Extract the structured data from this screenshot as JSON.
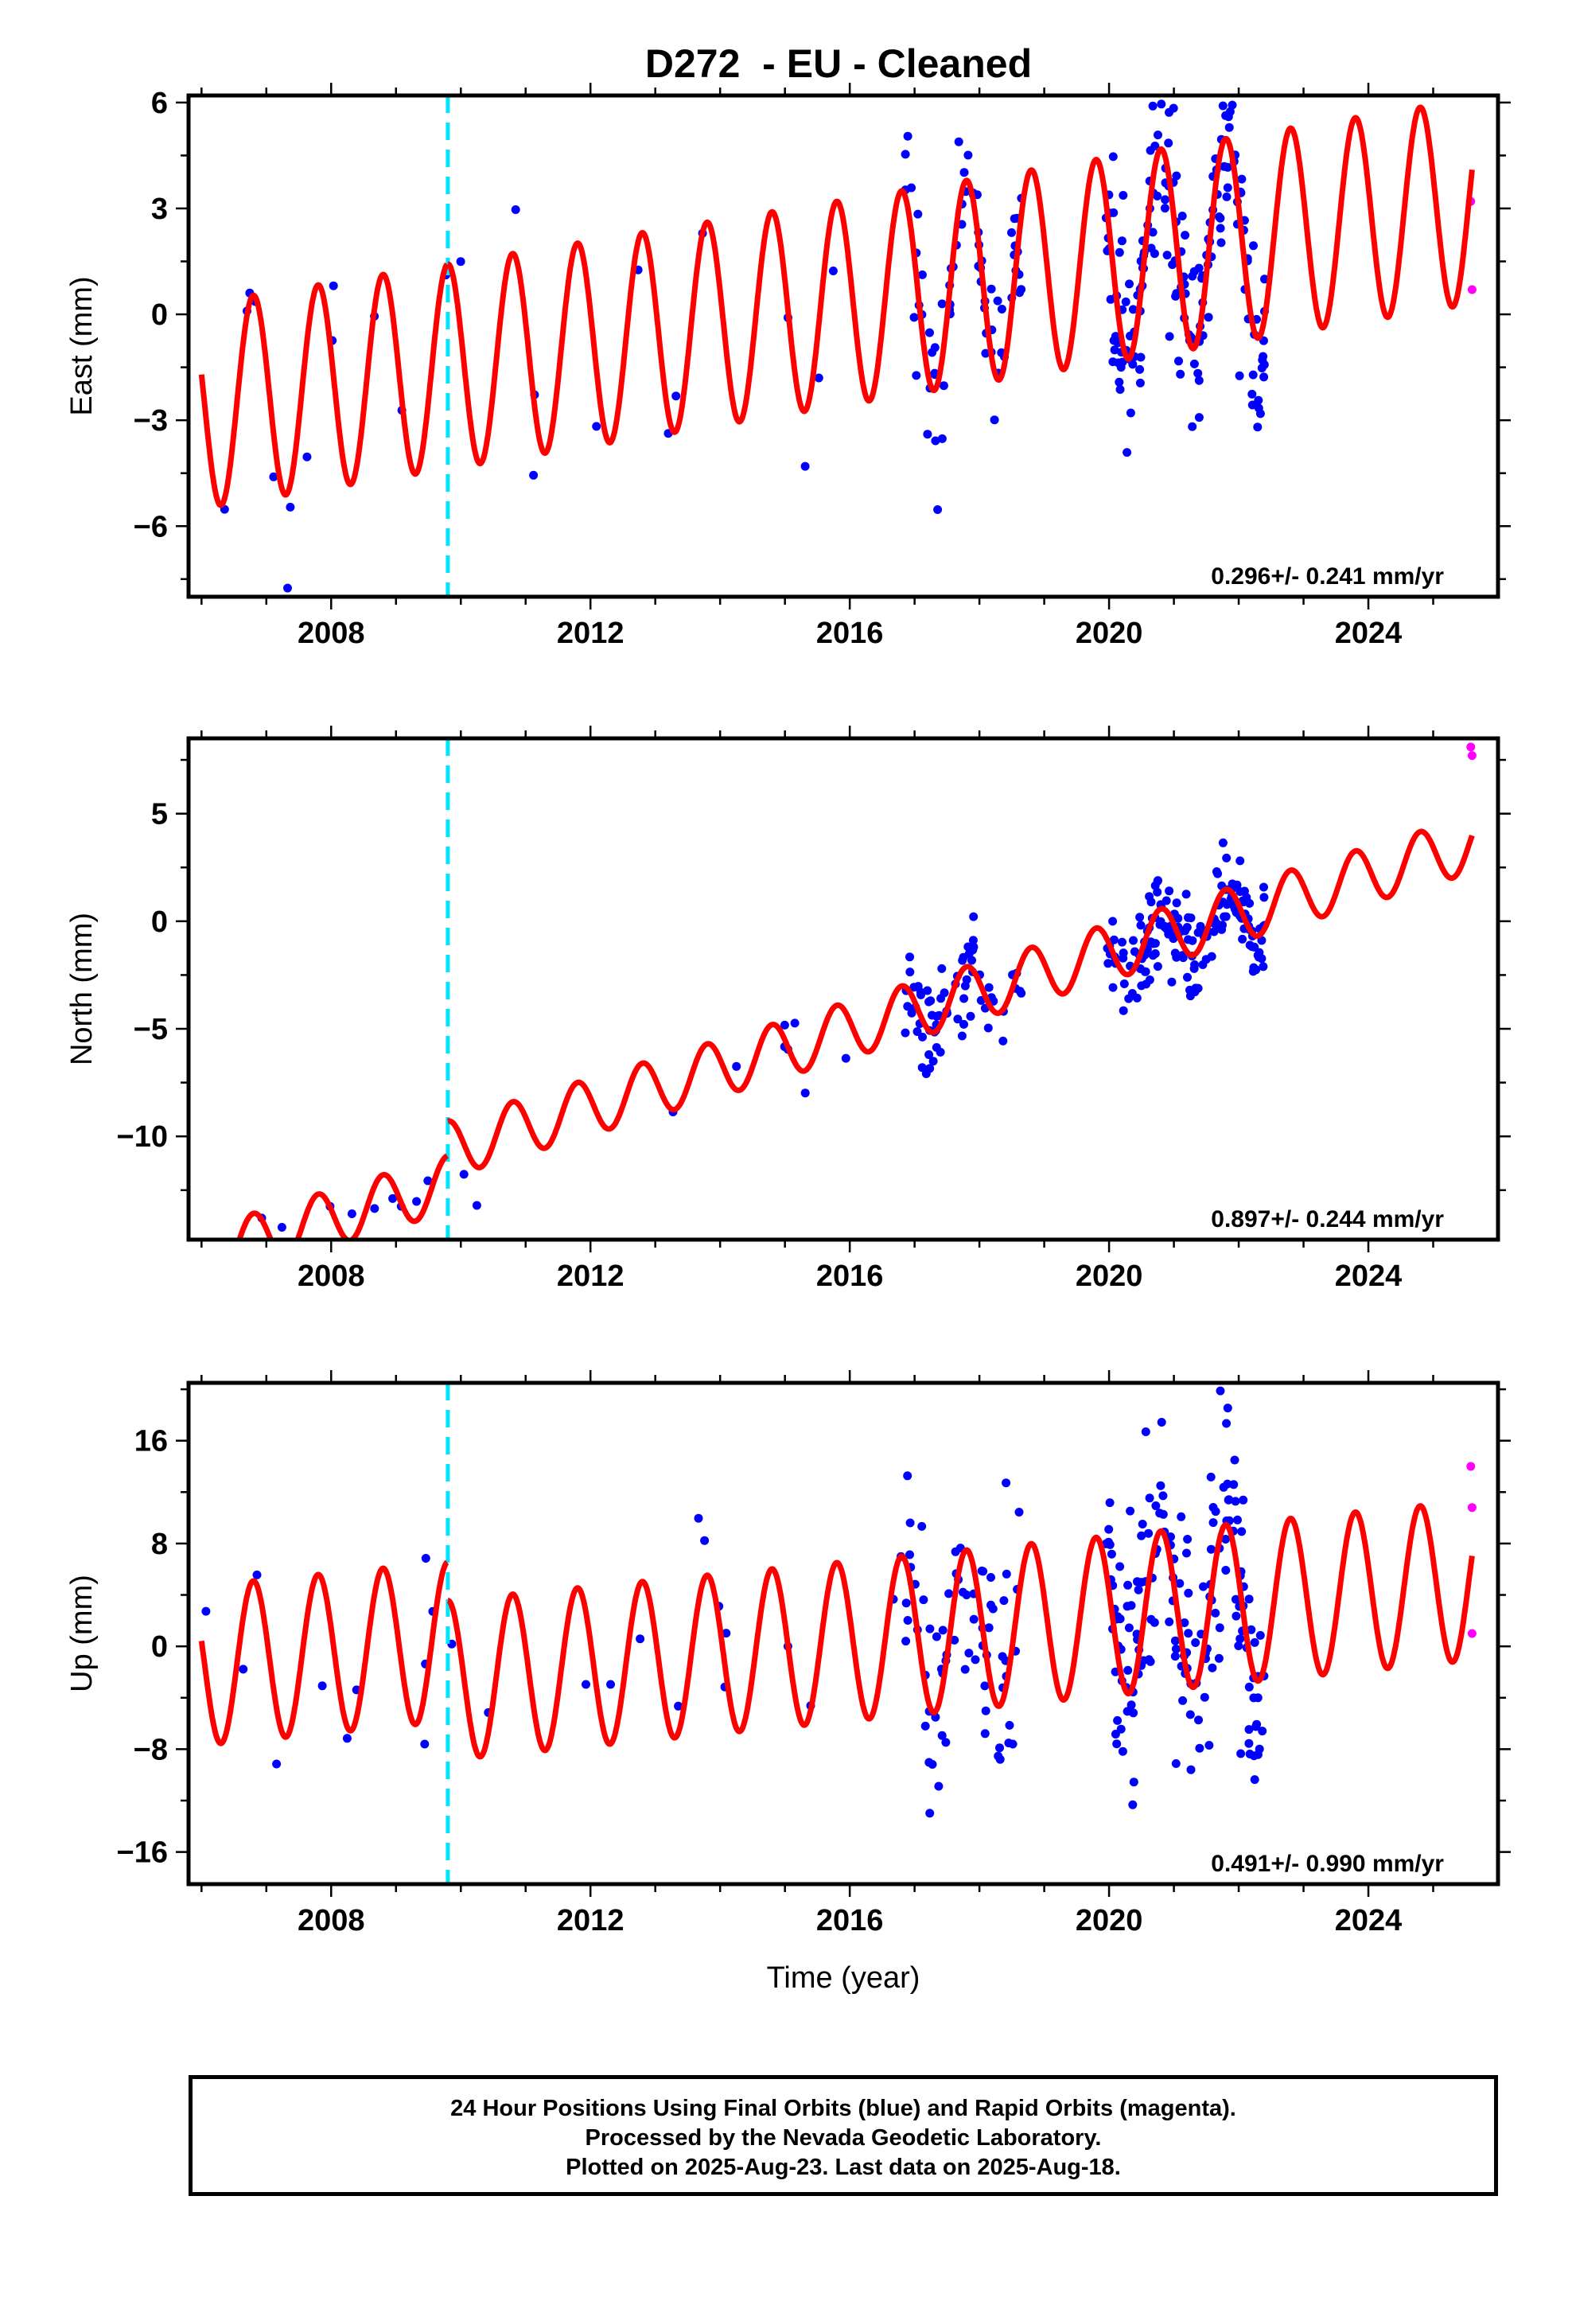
{
  "title": "D272  - EU - Cleaned",
  "xlabel": "Time (year)",
  "footer": {
    "line1": "24 Hour Positions Using Final Orbits (blue) and Rapid Orbits (magenta).",
    "line2": "Processed by the Nevada Geodetic Laboratory.",
    "line3": "Plotted on 2025-Aug-23. Last data on 2025-Aug-18."
  },
  "colors": {
    "final": "#0000ff",
    "rapid": "#ff00ff",
    "model": "#ff0000",
    "equipment_change": "#00e5ff"
  },
  "chart_data": [
    {
      "type": "scatter",
      "component": "East",
      "ylabel": "East (mm)",
      "xlim": [
        2005.8,
        2026.0
      ],
      "ylim": [
        -8,
        6.2
      ],
      "xticks": [
        2008,
        2012,
        2016,
        2020,
        2024
      ],
      "yticks": [
        -6,
        -3,
        0,
        3,
        6
      ],
      "ytick_labels": [
        "−6",
        "−3",
        "0",
        "3",
        "6"
      ],
      "rate": "0.296+/- 0.241 mm/yr",
      "equipment_change": 2009.8,
      "model": {
        "offset": -2.6,
        "trend": 0.296,
        "amplitude": 2.9,
        "phase": 0.55,
        "step": 0.0
      },
      "rapid": [
        {
          "x": 2025.58,
          "y": 3.2
        },
        {
          "x": 2025.6,
          "y": 0.7
        }
      ],
      "data_spans": [
        [
          2006.05,
          2016.8,
          26
        ],
        [
          2016.85,
          2018.65,
          70
        ],
        [
          2019.95,
          2022.4,
          170
        ]
      ],
      "scatter_sd": 1.3
    },
    {
      "type": "scatter",
      "component": "North",
      "ylabel": "North (mm)",
      "xlim": [
        2005.8,
        2026.0
      ],
      "ylim": [
        -14.8,
        8.5
      ],
      "xticks": [
        2008,
        2012,
        2016,
        2020,
        2024
      ],
      "yticks": [
        -10,
        -5,
        0,
        5
      ],
      "ytick_labels": [
        "−10",
        "−5",
        "0",
        "5"
      ],
      "rate": "0.897+/- 0.244 mm/yr",
      "equipment_change": 2009.8,
      "model": {
        "offset": -15.6,
        "trend": 0.897,
        "amplitude": 1.3,
        "phase": 0.55,
        "step": 1.6
      },
      "rapid": [
        {
          "x": 2025.58,
          "y": 8.1
        },
        {
          "x": 2025.6,
          "y": 7.7
        }
      ],
      "data_spans": [
        [
          2006.05,
          2016.8,
          26
        ],
        [
          2016.85,
          2018.65,
          70
        ],
        [
          2019.95,
          2022.4,
          170
        ]
      ],
      "scatter_sd": 1.1
    },
    {
      "type": "scatter",
      "component": "Up",
      "ylabel": "Up (mm)",
      "xlim": [
        2005.8,
        2026.0
      ],
      "ylim": [
        -18.5,
        20.5
      ],
      "xticks": [
        2008,
        2012,
        2016,
        2020,
        2024
      ],
      "yticks": [
        -16,
        -8,
        0,
        8,
        16
      ],
      "ytick_labels": [
        "−16",
        "−8",
        "0",
        "8",
        "16"
      ],
      "rate": "0.491+/- 0.990 mm/yr",
      "equipment_change": 2009.8,
      "model": {
        "offset": -1.5,
        "trend": 0.491,
        "amplitude": 6.2,
        "phase": 0.55,
        "step": -3.0
      },
      "rapid": [
        {
          "x": 2025.58,
          "y": 14.0
        },
        {
          "x": 2025.6,
          "y": 10.8
        },
        {
          "x": 2025.6,
          "y": 1.0
        }
      ],
      "data_spans": [
        [
          2006.05,
          2016.8,
          26
        ],
        [
          2016.85,
          2018.65,
          70
        ],
        [
          2019.95,
          2022.4,
          170
        ]
      ],
      "scatter_sd": 4.6
    }
  ]
}
